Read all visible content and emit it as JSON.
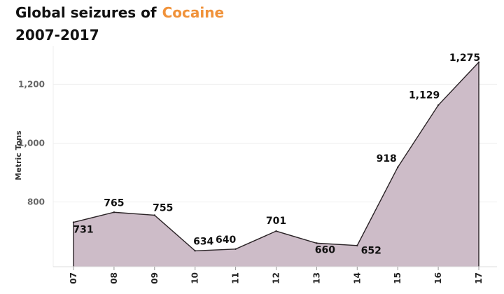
{
  "header": {
    "title_prefix": "Global seizures of",
    "title_accent": "Cocaine",
    "subtitle": "2007-2017"
  },
  "colors": {
    "accent": "#f0923a",
    "area_fill": "#cdbcc8",
    "line": "#2a2326",
    "grid": "#eeeeee"
  },
  "chart_data": {
    "type": "area",
    "title": "Global seizures of Cocaine 2007-2017",
    "ylabel": "Metric Tons",
    "xlabel": "",
    "categories": [
      "07",
      "08",
      "09",
      "10",
      "11",
      "12",
      "13",
      "14",
      "15",
      "16",
      "17"
    ],
    "values": [
      731,
      765,
      755,
      634,
      640,
      701,
      660,
      652,
      918,
      1129,
      1275
    ],
    "value_labels": [
      "731",
      "765",
      "755",
      "634",
      "640",
      "701",
      "660",
      "652",
      "918",
      "1,129",
      "1,275"
    ],
    "yticks": [
      800,
      1000,
      1200
    ],
    "ytick_labels": [
      "800",
      "1,000",
      "1,200"
    ],
    "ylim": [
      580,
      1320
    ],
    "grid": true
  }
}
